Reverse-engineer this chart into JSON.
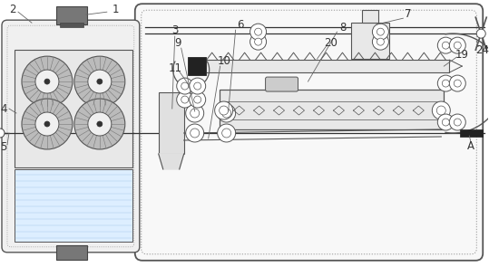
{
  "bg_color": "#ffffff",
  "line_color": "#333333",
  "label_color": "#444444",
  "figsize": [
    5.39,
    2.95
  ],
  "dpi": 100,
  "xlim": [
    0,
    539
  ],
  "ylim": [
    0,
    295
  ]
}
